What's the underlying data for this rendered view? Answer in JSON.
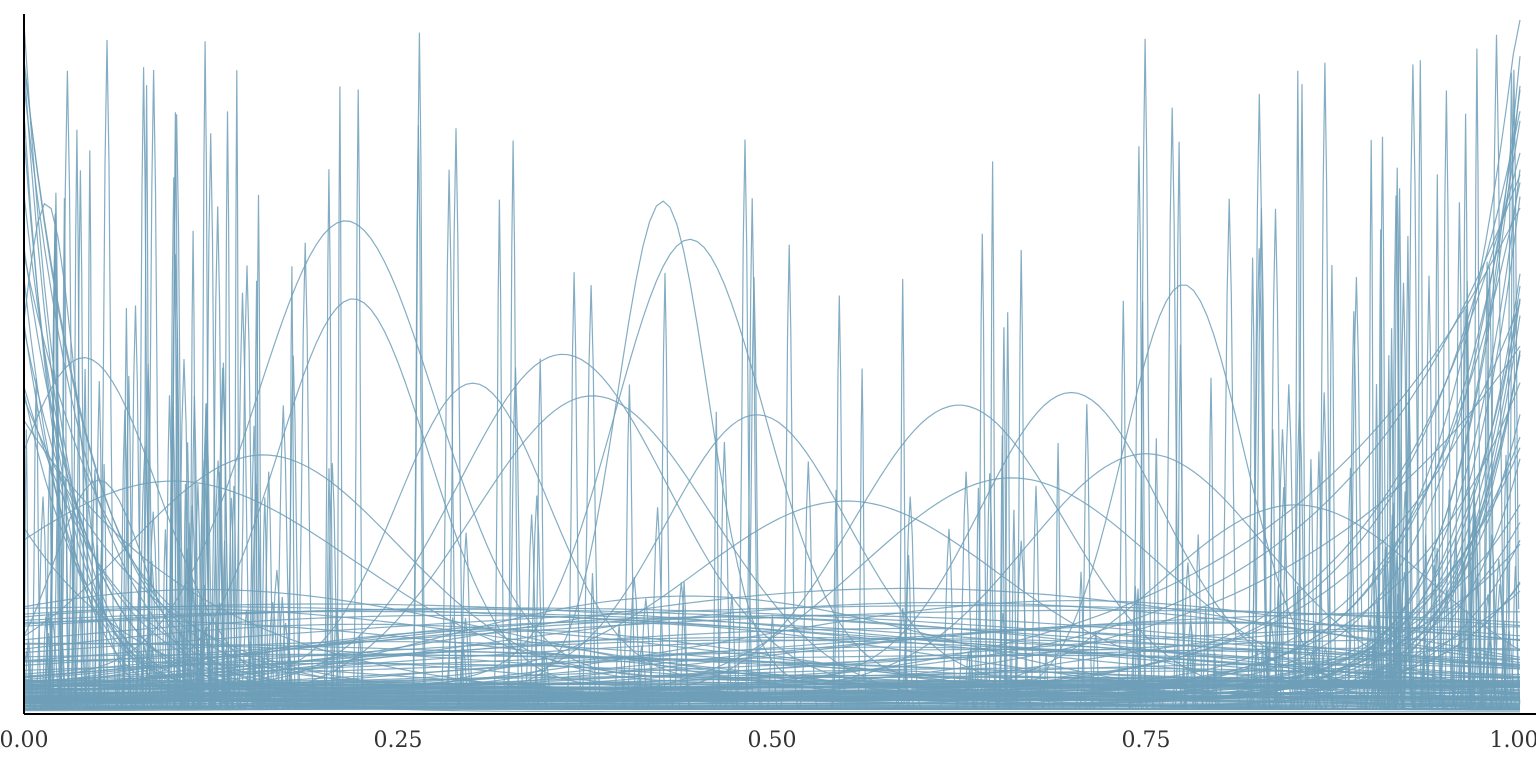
{
  "chart_data": {
    "type": "line",
    "title": "",
    "xlabel": "",
    "ylabel": "",
    "xlim": [
      0,
      1
    ],
    "x_ticks": [
      {
        "value": 0,
        "label": "0.00"
      },
      {
        "value": 0.25,
        "label": "0.25"
      },
      {
        "value": 0.5,
        "label": "0.50"
      },
      {
        "value": 0.75,
        "label": "0.75"
      },
      {
        "value": 1,
        "label": "1.00"
      }
    ],
    "grid": false,
    "legend": "none",
    "y_ticks_shown": false,
    "line_color": "#6f9fb8",
    "series_kinds": {
      "smooth_bumps": [
        {
          "center": 0.015,
          "width": 0.02,
          "height": 0.7
        },
        {
          "center": 0.04,
          "width": 0.05,
          "height": 0.49
        },
        {
          "center": 0.05,
          "width": 0.03,
          "height": 0.3
        },
        {
          "center": 0.215,
          "width": 0.06,
          "height": 0.66
        },
        {
          "center": 0.22,
          "width": 0.05,
          "height": 0.56
        },
        {
          "center": 0.36,
          "width": 0.07,
          "height": 0.48
        },
        {
          "center": 0.38,
          "width": 0.08,
          "height": 0.44
        },
        {
          "center": 0.3,
          "width": 0.05,
          "height": 0.43
        },
        {
          "center": 0.427,
          "width": 0.03,
          "height": 0.7
        },
        {
          "center": 0.445,
          "width": 0.05,
          "height": 0.64
        },
        {
          "center": 0.49,
          "width": 0.06,
          "height": 0.39
        },
        {
          "center": 0.625,
          "width": 0.07,
          "height": 0.42
        },
        {
          "center": 0.7,
          "width": 0.06,
          "height": 0.42
        },
        {
          "center": 0.775,
          "width": 0.04,
          "height": 0.6
        },
        {
          "center": 0.75,
          "width": 0.08,
          "height": 0.34
        },
        {
          "center": 0.85,
          "width": 0.09,
          "height": 0.28
        },
        {
          "center": 0.66,
          "width": 0.1,
          "height": 0.32
        },
        {
          "center": 0.16,
          "width": 0.09,
          "height": 0.33
        },
        {
          "center": 0.55,
          "width": 0.1,
          "height": 0.26
        },
        {
          "center": 0.1,
          "width": 0.12,
          "height": 0.29
        }
      ],
      "rising_to_right_count": 34,
      "falling_from_left_count": 18,
      "flat_low_count": 60,
      "spike_count": 300
    }
  }
}
